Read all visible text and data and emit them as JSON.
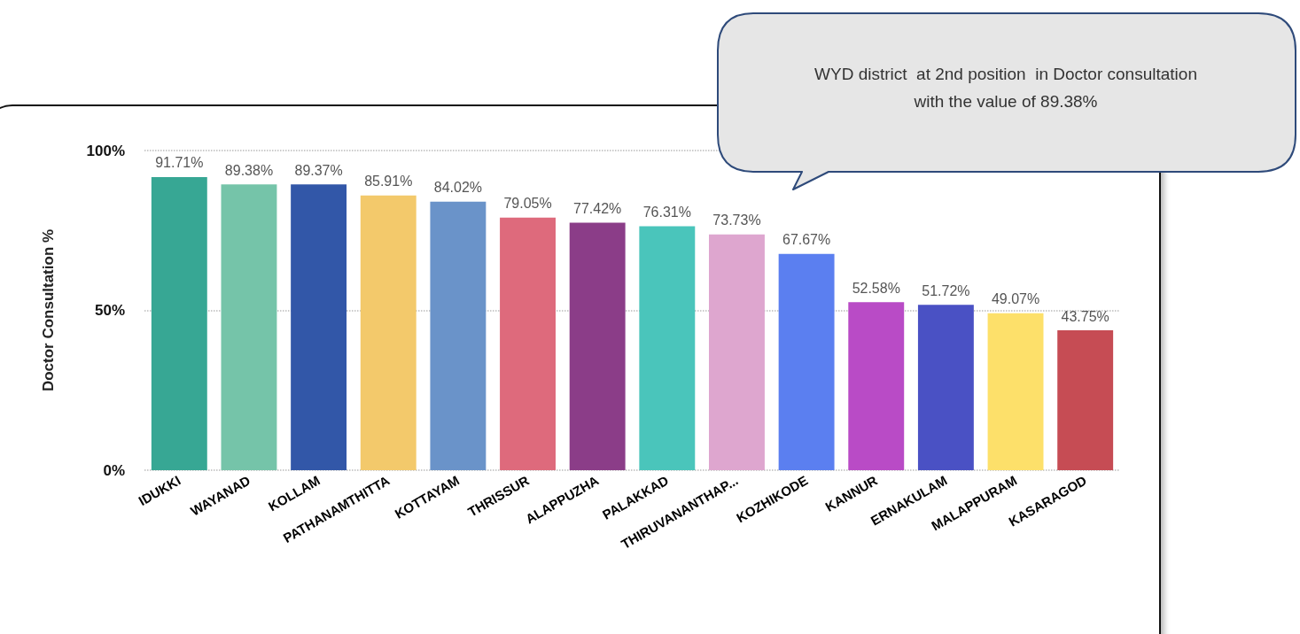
{
  "chart_data": {
    "type": "bar",
    "ylabel": "Doctor Consultation %",
    "categories": [
      "IDUKKI",
      "WAYANAD",
      "KOLLAM",
      "PATHANAMTHITTA",
      "KOTTAYAM",
      "THRISSUR",
      "ALAPPUZHA",
      "PALAKKAD",
      "THIRUVANANTHAP...",
      "KOZHIKODE",
      "KANNUR",
      "ERNAKULAM",
      "MALAPPURAM",
      "KASARAGOD"
    ],
    "values": [
      91.71,
      89.38,
      89.37,
      85.91,
      84.02,
      79.05,
      77.42,
      76.31,
      73.73,
      67.67,
      52.58,
      51.72,
      49.07,
      43.75
    ],
    "value_labels": [
      "91.71%",
      "89.38%",
      "89.37%",
      "85.91%",
      "84.02%",
      "79.05%",
      "77.42%",
      "76.31%",
      "73.73%",
      "67.67%",
      "52.58%",
      "51.72%",
      "49.07%",
      "43.75%"
    ],
    "colors": [
      "#37a794",
      "#75c4a9",
      "#3257a8",
      "#f3c96b",
      "#6a93c9",
      "#de6a7c",
      "#8b3d88",
      "#4ac5bb",
      "#dea6cf",
      "#5b7ff0",
      "#b94bc6",
      "#4a51c4",
      "#fde06a",
      "#c64c54"
    ],
    "ylim": [
      0,
      100
    ],
    "yticks": [
      {
        "value": 0,
        "label": "0%"
      },
      {
        "value": 50,
        "label": "50%"
      },
      {
        "value": 100,
        "label": "100%"
      }
    ],
    "grid": "y",
    "annotations": [
      "WYD district  at 2nd position  in Doctor consultation\nwith the value of 89.38%"
    ]
  }
}
